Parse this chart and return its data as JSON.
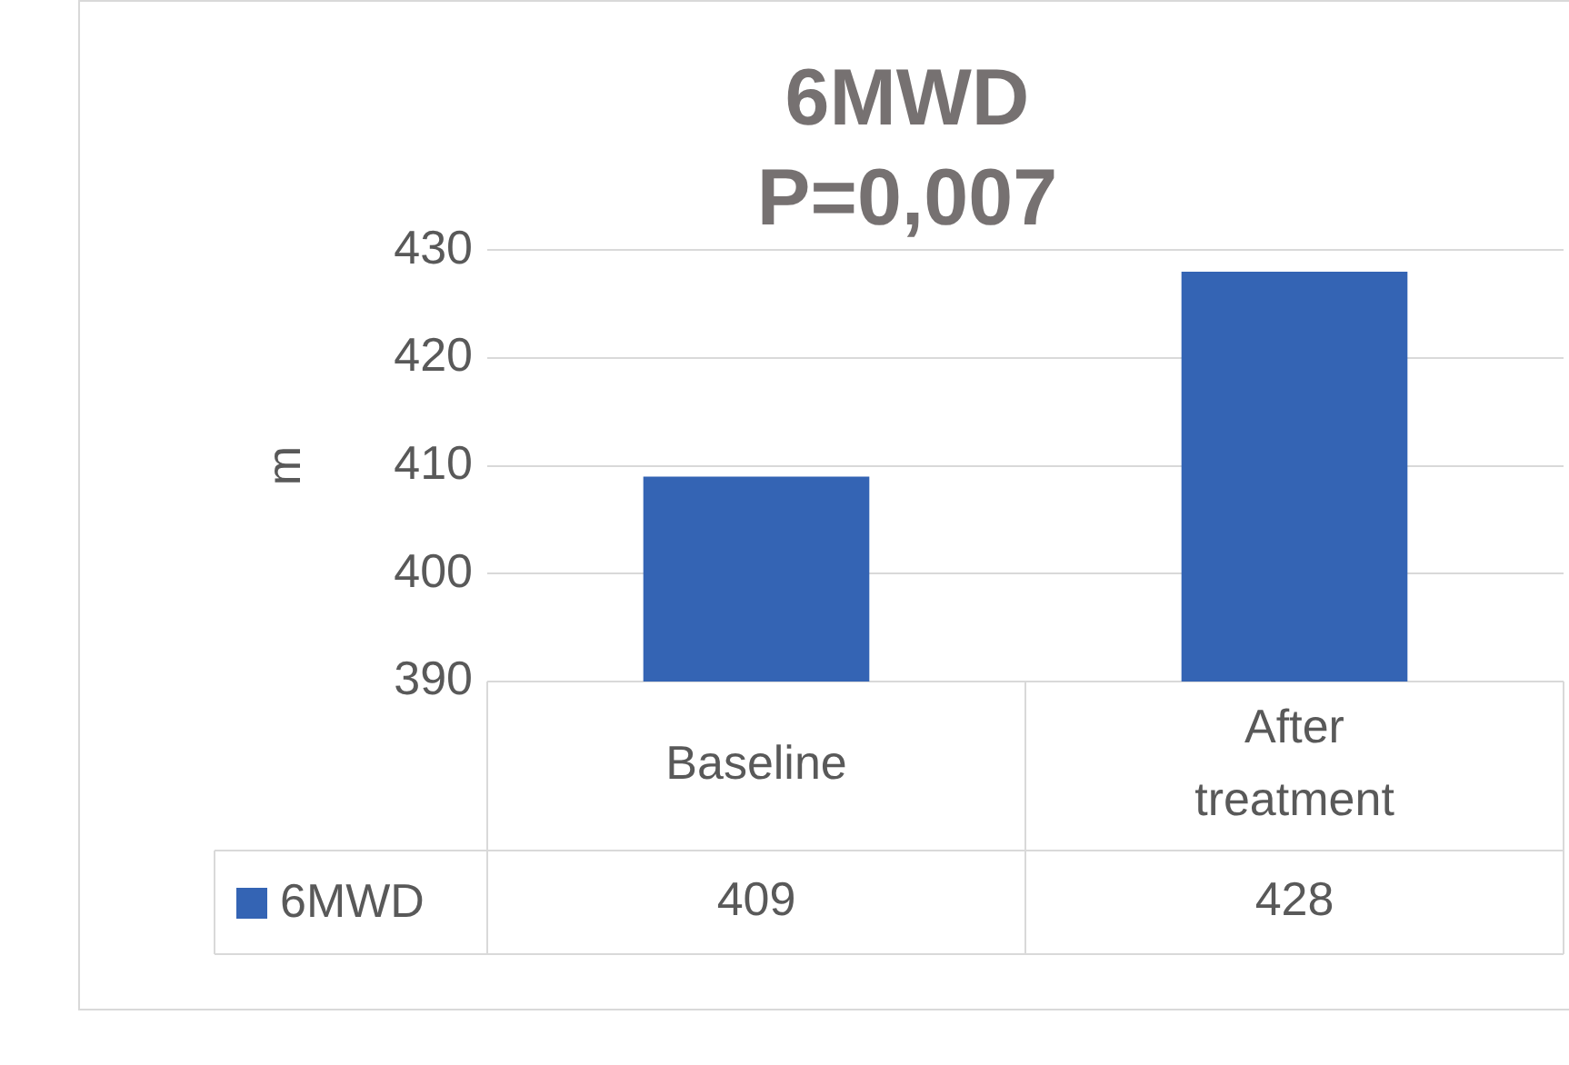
{
  "chart_data": {
    "type": "bar",
    "title": "6MWD",
    "subtitle": "P=0,007",
    "ylabel": "m",
    "categories": [
      "Baseline",
      "After treatment"
    ],
    "series": [
      {
        "name": "6MWD",
        "color": "#3464b4",
        "values": [
          409,
          428
        ]
      }
    ],
    "ylim": [
      390,
      430
    ],
    "yticks": [
      390,
      400,
      410,
      420,
      430
    ],
    "grid": "y",
    "legend": "bottom",
    "data_labels": true
  }
}
